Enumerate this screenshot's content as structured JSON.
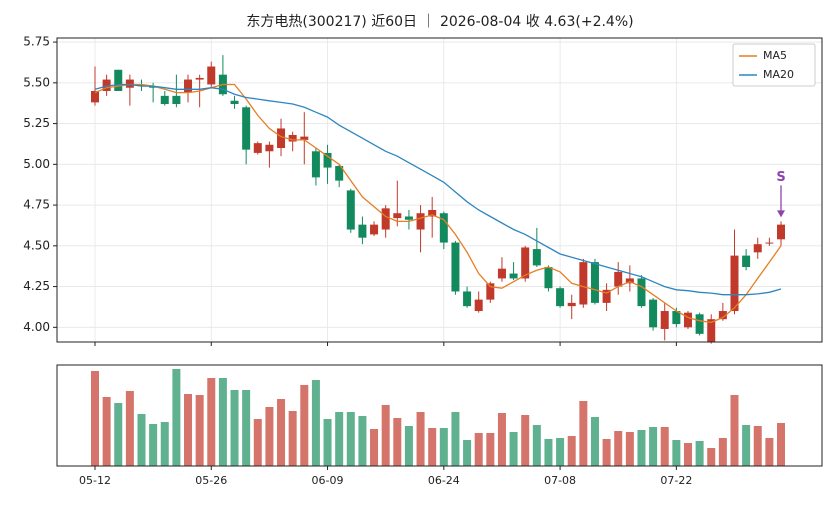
{
  "chart_data": {
    "type": "candlestick",
    "title": "东方电热(300217) 近60日 ｜ 2026-08-04 收 4.63(+2.4%)",
    "categories": [
      "05-12",
      null,
      null,
      null,
      null,
      null,
      null,
      null,
      null,
      null,
      "05-26",
      null,
      null,
      null,
      null,
      null,
      null,
      null,
      null,
      null,
      "06-09",
      null,
      null,
      null,
      null,
      null,
      null,
      null,
      null,
      null,
      "06-24",
      null,
      null,
      null,
      null,
      null,
      null,
      null,
      null,
      null,
      "07-08",
      null,
      null,
      null,
      null,
      null,
      null,
      null,
      null,
      null,
      "07-22",
      null,
      null,
      null,
      null,
      null,
      null,
      null,
      null,
      null
    ],
    "open": [
      5.38,
      5.45,
      5.58,
      5.47,
      5.49,
      5.48,
      5.42,
      5.42,
      5.44,
      5.52,
      5.49,
      5.55,
      5.39,
      5.35,
      5.07,
      5.08,
      5.1,
      5.14,
      5.15,
      5.08,
      5.07,
      4.99,
      4.84,
      4.63,
      4.57,
      4.6,
      4.67,
      4.68,
      4.6,
      4.68,
      4.7,
      4.52,
      4.22,
      4.1,
      4.17,
      4.3,
      4.33,
      4.3,
      4.48,
      4.37,
      4.24,
      4.13,
      4.14,
      4.4,
      4.15,
      4.25,
      4.27,
      4.3,
      4.17,
      3.99,
      4.1,
      4.0,
      4.08,
      3.91,
      4.05,
      4.1,
      4.44,
      4.46,
      4.52,
      4.54
    ],
    "high": [
      5.6,
      5.55,
      5.58,
      5.55,
      5.52,
      5.5,
      5.45,
      5.55,
      5.55,
      5.55,
      5.63,
      5.67,
      5.42,
      5.36,
      5.14,
      5.14,
      5.28,
      5.2,
      5.32,
      5.1,
      5.12,
      5.0,
      4.85,
      4.68,
      4.65,
      4.75,
      4.9,
      4.72,
      4.75,
      4.8,
      4.71,
      4.53,
      4.25,
      4.22,
      4.28,
      4.43,
      4.4,
      4.5,
      4.61,
      4.38,
      4.25,
      4.2,
      4.42,
      4.42,
      4.27,
      4.4,
      4.38,
      4.32,
      4.18,
      4.15,
      4.12,
      4.1,
      4.09,
      4.08,
      4.15,
      4.6,
      4.48,
      4.55,
      4.55,
      4.65
    ],
    "low": [
      5.36,
      5.42,
      5.45,
      5.36,
      5.45,
      5.38,
      5.36,
      5.35,
      5.38,
      5.35,
      5.47,
      5.42,
      5.34,
      5.0,
      5.06,
      4.98,
      5.05,
      5.08,
      5.0,
      4.87,
      4.88,
      4.86,
      4.58,
      4.51,
      4.56,
      4.55,
      4.62,
      4.6,
      4.46,
      4.55,
      4.48,
      4.2,
      4.12,
      4.09,
      4.15,
      4.28,
      4.29,
      4.28,
      4.37,
      4.22,
      4.12,
      4.05,
      4.12,
      4.14,
      4.1,
      4.2,
      4.22,
      4.12,
      3.98,
      3.92,
      4.0,
      3.99,
      3.95,
      3.9,
      4.04,
      4.08,
      4.35,
      4.42,
      4.5,
      4.5
    ],
    "close": [
      5.45,
      5.52,
      5.45,
      5.52,
      5.48,
      5.47,
      5.37,
      5.37,
      5.52,
      5.53,
      5.6,
      5.43,
      5.37,
      5.09,
      5.13,
      5.12,
      5.22,
      5.18,
      5.17,
      4.92,
      4.98,
      4.9,
      4.6,
      4.55,
      4.63,
      4.73,
      4.7,
      4.66,
      4.7,
      4.72,
      4.52,
      4.22,
      4.13,
      4.17,
      4.27,
      4.36,
      4.3,
      4.49,
      4.38,
      4.24,
      4.13,
      4.15,
      4.4,
      4.15,
      4.23,
      4.34,
      4.3,
      4.13,
      4.0,
      4.1,
      4.02,
      4.09,
      3.96,
      4.05,
      4.1,
      4.44,
      4.37,
      4.51,
      4.52,
      4.63
    ],
    "volume": [
      95,
      69,
      63,
      75,
      52,
      42,
      44,
      97,
      72,
      71,
      88,
      88,
      76,
      76,
      47,
      59,
      67,
      55,
      81,
      86,
      47,
      54,
      54,
      50,
      37,
      61,
      48,
      40,
      54,
      38,
      38,
      54,
      26,
      33,
      33,
      53,
      34,
      51,
      41,
      27,
      28,
      30,
      65,
      49,
      27,
      35,
      34,
      36,
      39,
      39,
      26,
      23,
      25,
      18,
      28,
      71,
      41,
      40,
      28,
      43
    ],
    "up_color": "#c0392b",
    "down_color": "#138a5e",
    "volume_up_color": "#d4746a",
    "volume_down_color": "#5fb18f",
    "series": [
      {
        "name": "MA5",
        "color": "#e67e22",
        "values": [
          5.44,
          5.47,
          5.48,
          5.49,
          5.49,
          5.48,
          5.46,
          5.44,
          5.44,
          5.45,
          5.47,
          5.49,
          5.49,
          5.4,
          5.3,
          5.22,
          5.17,
          5.15,
          5.15,
          5.1,
          5.05,
          5.0,
          4.9,
          4.8,
          4.74,
          4.68,
          4.65,
          4.65,
          4.67,
          4.69,
          4.66,
          4.57,
          4.46,
          4.33,
          4.25,
          4.24,
          4.28,
          4.32,
          4.35,
          4.37,
          4.34,
          4.27,
          4.25,
          4.23,
          4.21,
          4.25,
          4.28,
          4.25,
          4.2,
          4.15,
          4.1,
          4.06,
          4.04,
          4.03,
          4.06,
          4.12,
          4.2,
          4.3,
          4.4,
          4.5
        ]
      },
      {
        "name": "MA20",
        "color": "#2e86c1",
        "values": [
          5.46,
          5.48,
          5.49,
          5.49,
          5.48,
          5.48,
          5.47,
          5.46,
          5.46,
          5.46,
          5.47,
          5.46,
          5.43,
          5.41,
          5.4,
          5.39,
          5.38,
          5.37,
          5.35,
          5.32,
          5.29,
          5.24,
          5.2,
          5.16,
          5.12,
          5.08,
          5.05,
          5.01,
          4.97,
          4.93,
          4.89,
          4.83,
          4.77,
          4.72,
          4.68,
          4.64,
          4.6,
          4.57,
          4.53,
          4.49,
          4.45,
          4.43,
          4.41,
          4.39,
          4.37,
          4.35,
          4.33,
          4.31,
          4.28,
          4.25,
          4.23,
          4.225,
          4.215,
          4.21,
          4.2,
          4.2,
          4.2,
          4.205,
          4.215,
          4.235
        ]
      }
    ],
    "annotations": [
      {
        "text": "S",
        "color": "#8e44ad"
      }
    ],
    "ylim": [
      3.91,
      5.775
    ],
    "yticks": [
      {
        "value": 4,
        "label": "4.00"
      },
      4.25,
      {
        "value": 4.5,
        "label": "4.50"
      },
      4.75,
      {
        "value": 5,
        "label": "5.00"
      },
      5.25,
      {
        "value": 5.5,
        "label": "5.50"
      },
      5.75
    ],
    "grid": true,
    "legend": "upper right"
  }
}
